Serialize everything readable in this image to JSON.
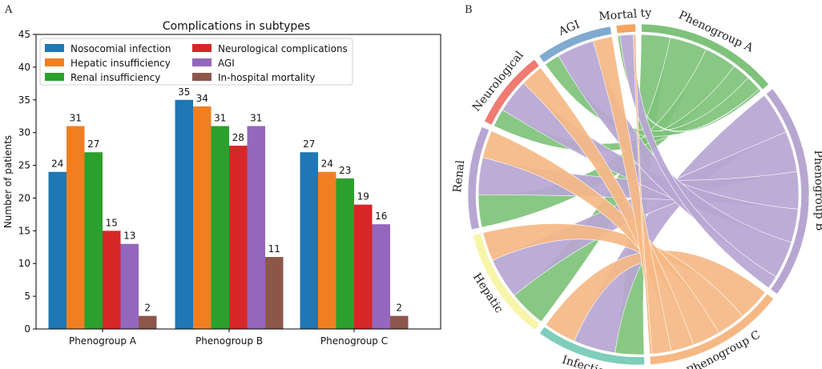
{
  "panels": {
    "a_label": "A",
    "b_label": "B"
  },
  "colors": {
    "blue": "#1f77b4",
    "orange": "#f07f22",
    "green": "#2ca02c",
    "red": "#d62728",
    "purple": "#9467bd",
    "brown": "#8c564b",
    "chord_green": "#7fc27b",
    "chord_purple": "#b7a6d2",
    "chord_orange": "#f5b884",
    "arc_phenoA": "#7fc27b",
    "arc_phenoB": "#b7a6d2",
    "arc_phenoC": "#f5b884",
    "arc_infection": "#7fcdbb",
    "arc_hepatic": "#f7f5a8",
    "arc_renal": "#b7a6d2",
    "arc_neuro": "#ef7b72",
    "arc_agi": "#80aad0",
    "arc_mortality": "#f4a460"
  },
  "chart_data": [
    {
      "type": "bar",
      "title": "Complications in subtypes",
      "xlabel": "",
      "ylabel": "Number of patients",
      "ylim": [
        0,
        45
      ],
      "yticks": [
        0,
        5,
        10,
        15,
        20,
        25,
        30,
        35,
        40,
        45
      ],
      "categories": [
        "Phenogroup A",
        "Phenogroup B",
        "Phenogroup C"
      ],
      "legend_position": "top-left",
      "series": [
        {
          "name": "Nosocomial infection",
          "color": "#1f77b4",
          "values": [
            24,
            35,
            27
          ]
        },
        {
          "name": "Hepatic insufficiency",
          "color": "#f07f22",
          "values": [
            31,
            34,
            24
          ]
        },
        {
          "name": "Renal insufficiency",
          "color": "#2ca02c",
          "values": [
            27,
            31,
            23
          ]
        },
        {
          "name": "Neurological complications",
          "color": "#d62728",
          "values": [
            15,
            28,
            19
          ]
        },
        {
          "name": "AGI",
          "color": "#9467bd",
          "values": [
            13,
            31,
            16
          ]
        },
        {
          "name": "In-hospital mortality",
          "color": "#8c564b",
          "values": [
            2,
            11,
            2
          ]
        }
      ]
    },
    {
      "type": "chord",
      "groups": [
        "Phenogroup A",
        "Phenogroup B",
        "Phenogroup C"
      ],
      "complications": [
        "Infection",
        "Hepatic",
        "Renal",
        "Neurological",
        "AGI",
        "Mortality"
      ],
      "labels": {
        "phenoA": "Phenogroup A",
        "phenoB": "Phenogroup B",
        "phenoC": "Phenogroup C",
        "infection": "Infection",
        "hepatic": "Hepatic",
        "renal": "Renal",
        "neuro": "Neurological",
        "agi": "AGI",
        "mortality": "Mortal ty"
      },
      "matrix": {
        "Phenogroup A": {
          "Infection": 24,
          "Hepatic": 31,
          "Renal": 27,
          "Neurological": 15,
          "AGI": 13,
          "Mortality": 2
        },
        "Phenogroup B": {
          "Infection": 35,
          "Hepatic": 34,
          "Renal": 31,
          "Neurological": 28,
          "AGI": 31,
          "Mortality": 11
        },
        "Phenogroup C": {
          "Infection": 27,
          "Hepatic": 24,
          "Renal": 23,
          "Neurological": 19,
          "AGI": 16,
          "Mortality": 2
        }
      }
    }
  ]
}
